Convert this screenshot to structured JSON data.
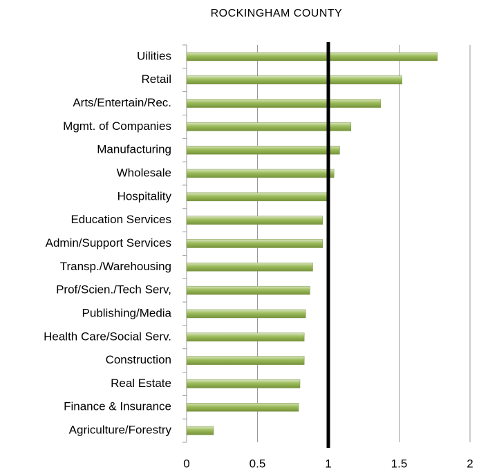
{
  "chart_data": {
    "type": "bar",
    "orientation": "horizontal",
    "title": "ROCKINGHAM COUNTY",
    "categories": [
      "Uilities",
      "Retail",
      "Arts/Entertain/Rec.",
      "Mgmt. of Companies",
      "Manufacturing",
      "Wholesale",
      "Hospitality",
      "Education Services",
      "Admin/Support Services",
      "Transp./Warehousing",
      "Prof/Scien./Tech Serv,",
      "Publishing/Media",
      "Health Care/Social Serv.",
      "Construction",
      "Real Estate",
      "Finance & Insurance",
      "Agriculture/Forestry"
    ],
    "values": [
      1.77,
      1.52,
      1.37,
      1.16,
      1.08,
      1.04,
      0.99,
      0.96,
      0.96,
      0.89,
      0.87,
      0.84,
      0.83,
      0.83,
      0.8,
      0.79,
      0.19
    ],
    "color": "#9bbb59",
    "xlim": [
      0,
      2
    ],
    "xticks": [
      0,
      0.5,
      1,
      1.5,
      2
    ],
    "grid": true,
    "reference_line": 1
  }
}
